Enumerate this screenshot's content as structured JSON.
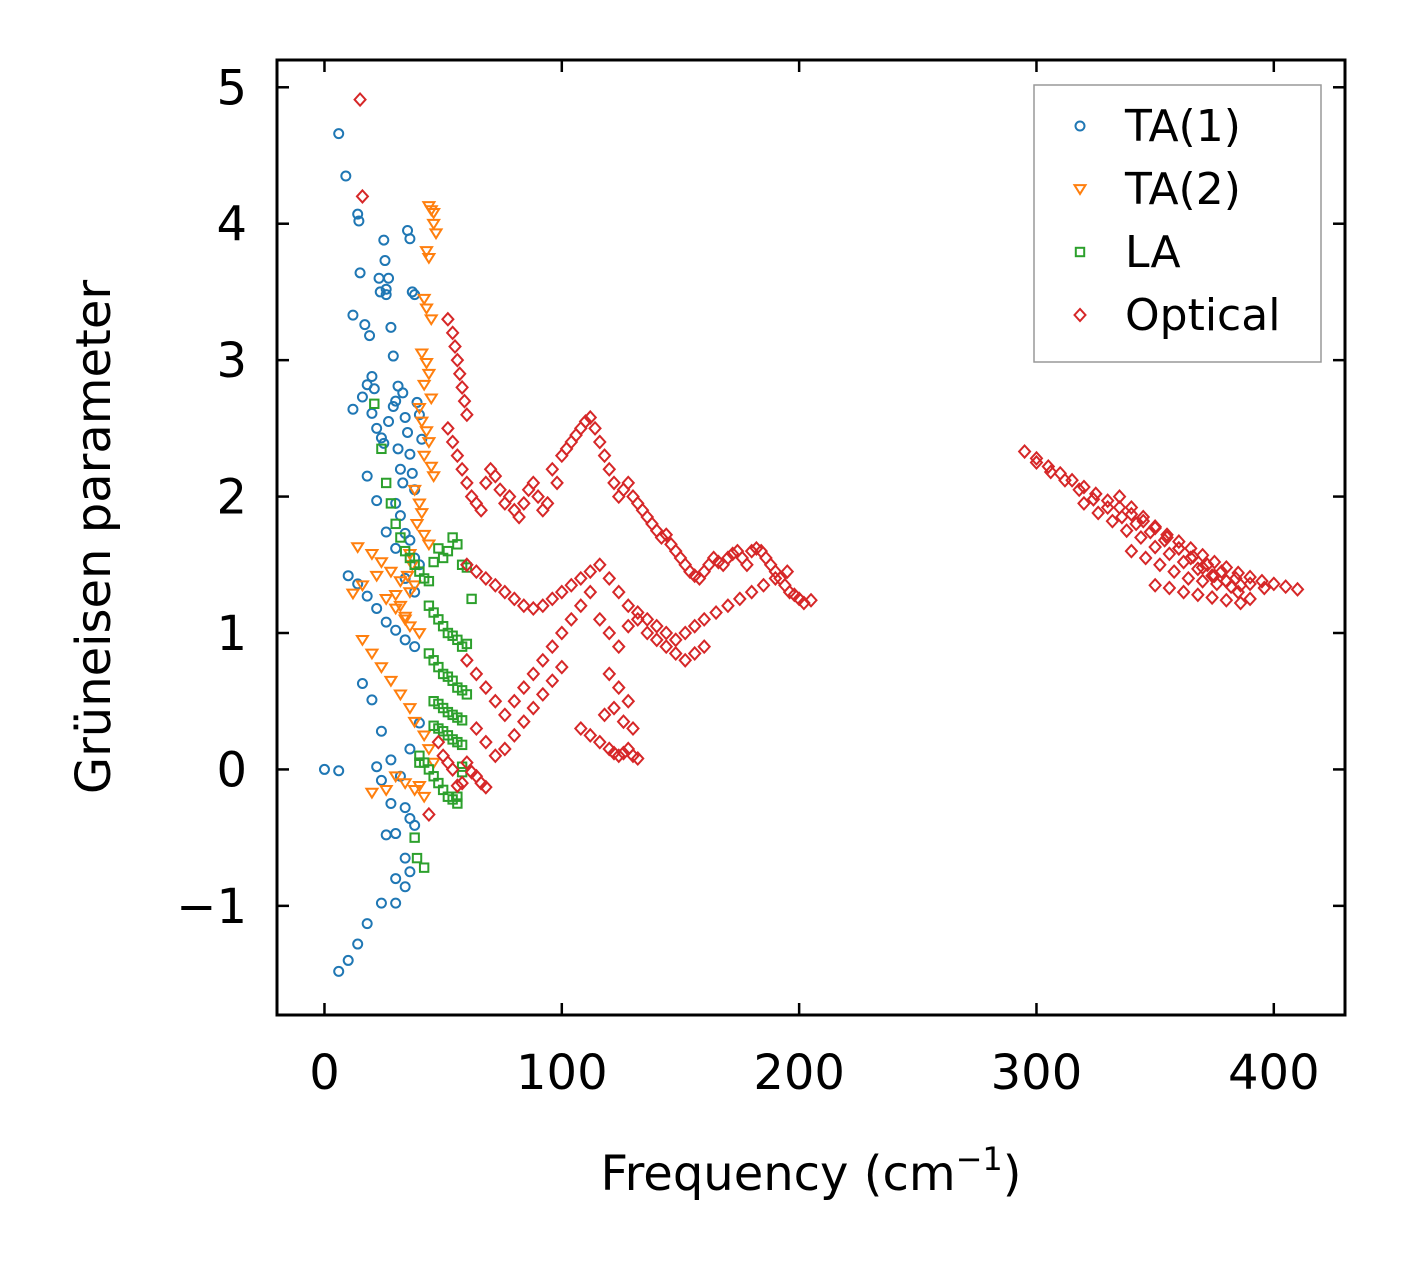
{
  "chart_data": {
    "type": "scatter",
    "xlabel": "Frequency (cm",
    "xlabel_sup": "−1",
    "xlabel_close": ")",
    "ylabel": "Grüneisen parameter",
    "xlim": [
      -20,
      430
    ],
    "ylim": [
      -1.8,
      5.2
    ],
    "xticks": [
      0,
      100,
      200,
      300,
      400
    ],
    "yticks": [
      -1,
      0,
      1,
      2,
      3,
      4,
      5
    ],
    "xtick_labels": [
      "0",
      "100",
      "200",
      "300",
      "400"
    ],
    "ytick_labels": [
      "−1",
      "0",
      "1",
      "2",
      "3",
      "4",
      "5"
    ],
    "legend_position": "top-right",
    "series": [
      {
        "name": "TA(1)",
        "marker": "circle",
        "color": "#1f77b4",
        "x": [
          6,
          9,
          12,
          14,
          14.5,
          17,
          19,
          20,
          21,
          23,
          23.5,
          25,
          25.5,
          26,
          26,
          27,
          28,
          29,
          31,
          33,
          35,
          36,
          37,
          38,
          12,
          16,
          18,
          20,
          22,
          24,
          25,
          27,
          29,
          30,
          31,
          32,
          33,
          34,
          35,
          36,
          37,
          38,
          39,
          40,
          41,
          30,
          32,
          34,
          36,
          38,
          40,
          10,
          14,
          18,
          22,
          26,
          30,
          34,
          38,
          16,
          20,
          24,
          28,
          32,
          36,
          40,
          15,
          18,
          22,
          26,
          30,
          34,
          38,
          0,
          6,
          22,
          24,
          28,
          30,
          34,
          36,
          38,
          26,
          30,
          34,
          36,
          6,
          10,
          14,
          18,
          24,
          30,
          34
        ],
        "y": [
          4.66,
          4.35,
          3.33,
          4.07,
          4.02,
          3.26,
          3.18,
          2.88,
          2.79,
          3.6,
          3.5,
          3.88,
          3.73,
          3.52,
          3.48,
          3.6,
          3.24,
          3.03,
          2.81,
          2.76,
          3.95,
          3.89,
          3.5,
          3.48,
          2.64,
          2.73,
          2.82,
          2.61,
          2.5,
          2.43,
          2.39,
          2.55,
          2.66,
          2.7,
          2.35,
          2.2,
          2.1,
          2.58,
          2.47,
          2.31,
          2.17,
          2.05,
          2.69,
          2.6,
          2.42,
          1.95,
          1.86,
          1.73,
          1.68,
          1.55,
          1.5,
          1.42,
          1.36,
          1.27,
          1.18,
          1.08,
          1.02,
          0.95,
          0.9,
          0.63,
          0.51,
          0.28,
          0.07,
          -0.05,
          0.15,
          0.34,
          3.64,
          2.15,
          1.97,
          1.74,
          1.62,
          1.4,
          1.3,
          0.0,
          -0.01,
          0.02,
          -0.08,
          -0.25,
          -0.47,
          -0.28,
          -0.36,
          -0.41,
          -0.48,
          -0.98,
          -0.86,
          -0.75,
          -1.48,
          -1.4,
          -1.28,
          -1.13,
          -0.98,
          -0.8,
          -0.65
        ]
      },
      {
        "name": "TA(2)",
        "marker": "triangle-down",
        "color": "#ff7f0e",
        "x": [
          44,
          45,
          46,
          46,
          47,
          43,
          44,
          42,
          43,
          45,
          41,
          43,
          44,
          42,
          45,
          40,
          41,
          43,
          44,
          42,
          45,
          46,
          38,
          40,
          41,
          39,
          42,
          44,
          36,
          37,
          35,
          38,
          30,
          32,
          34,
          36,
          14,
          20,
          24,
          28,
          32,
          36,
          12,
          16,
          22,
          26,
          30,
          34,
          40,
          16,
          20,
          24,
          28,
          32,
          36,
          38,
          42,
          44,
          46,
          30,
          34,
          38,
          42,
          20,
          26,
          40
        ],
        "y": [
          4.13,
          4.1,
          4.08,
          4.0,
          3.93,
          3.8,
          3.75,
          3.45,
          3.38,
          3.3,
          3.05,
          2.98,
          2.9,
          2.82,
          2.72,
          2.65,
          2.55,
          2.48,
          2.4,
          2.3,
          2.22,
          2.15,
          2.05,
          1.95,
          1.88,
          1.8,
          1.72,
          1.65,
          1.58,
          1.5,
          1.42,
          1.35,
          1.28,
          1.2,
          1.12,
          1.05,
          1.63,
          1.58,
          1.52,
          1.45,
          1.38,
          1.3,
          1.29,
          1.35,
          1.42,
          1.25,
          1.18,
          1.1,
          1.0,
          0.95,
          0.85,
          0.75,
          0.65,
          0.55,
          0.45,
          0.35,
          0.25,
          0.15,
          0.05,
          -0.05,
          -0.1,
          -0.15,
          -0.2,
          -0.17,
          -0.15,
          -0.12
        ]
      },
      {
        "name": "LA",
        "marker": "square",
        "color": "#2ca02c",
        "x": [
          21,
          24,
          26,
          28,
          30,
          32,
          34,
          36,
          38,
          40,
          42,
          44,
          46,
          48,
          50,
          52,
          54,
          56,
          58,
          60,
          62,
          44,
          46,
          48,
          50,
          52,
          54,
          56,
          58,
          60,
          44,
          46,
          48,
          50,
          52,
          54,
          56,
          58,
          60,
          46,
          48,
          50,
          52,
          54,
          56,
          58,
          46,
          48,
          50,
          52,
          54,
          56,
          58,
          40,
          42,
          44,
          46,
          48,
          50,
          52,
          54,
          56,
          58,
          40,
          38,
          39,
          42,
          56,
          58
        ],
        "y": [
          2.68,
          2.35,
          2.1,
          1.95,
          1.8,
          1.7,
          1.6,
          1.55,
          1.5,
          1.45,
          1.4,
          1.38,
          1.52,
          1.62,
          1.55,
          1.6,
          1.7,
          1.65,
          1.5,
          1.48,
          1.25,
          1.2,
          1.15,
          1.1,
          1.05,
          1.0,
          0.98,
          0.95,
          0.9,
          0.92,
          0.85,
          0.8,
          0.75,
          0.7,
          0.68,
          0.65,
          0.6,
          0.58,
          0.55,
          0.5,
          0.48,
          0.45,
          0.42,
          0.4,
          0.38,
          0.36,
          0.32,
          0.3,
          0.28,
          0.25,
          0.22,
          0.2,
          0.18,
          0.1,
          0.05,
          0.0,
          -0.05,
          -0.1,
          -0.15,
          -0.2,
          -0.22,
          -0.25,
          -0.02,
          0.05,
          -0.5,
          -0.65,
          -0.72,
          -0.2,
          0.02
        ]
      },
      {
        "name": "Optical",
        "marker": "diamond",
        "color": "#d62728",
        "x": [
          15,
          16,
          44,
          52,
          54,
          55,
          56,
          57,
          58,
          59,
          60,
          52,
          54,
          56,
          58,
          60,
          62,
          64,
          66,
          68,
          70,
          72,
          74,
          76,
          78,
          80,
          82,
          84,
          86,
          88,
          90,
          92,
          94,
          96,
          98,
          100,
          102,
          104,
          106,
          108,
          110,
          112,
          114,
          116,
          118,
          120,
          122,
          124,
          126,
          128,
          130,
          132,
          134,
          136,
          138,
          140,
          142,
          144,
          146,
          148,
          150,
          152,
          154,
          156,
          158,
          160,
          162,
          164,
          166,
          168,
          170,
          172,
          174,
          176,
          178,
          180,
          182,
          184,
          186,
          188,
          190,
          192,
          194,
          196,
          198,
          200,
          202,
          205,
          60,
          64,
          68,
          72,
          76,
          80,
          84,
          88,
          92,
          96,
          100,
          104,
          108,
          112,
          116,
          120,
          124,
          128,
          132,
          136,
          140,
          144,
          148,
          152,
          156,
          160,
          165,
          170,
          175,
          180,
          185,
          190,
          195,
          60,
          64,
          68,
          72,
          76,
          80,
          84,
          88,
          92,
          96,
          100,
          104,
          108,
          112,
          116,
          120,
          124,
          128,
          132,
          136,
          140,
          144,
          148,
          152,
          156,
          160,
          64,
          68,
          72,
          76,
          80,
          84,
          88,
          92,
          96,
          100,
          108,
          112,
          116,
          120,
          122,
          124,
          126,
          128,
          130,
          132,
          120,
          124,
          128,
          118,
          122,
          126,
          130,
          60,
          62,
          64,
          66,
          68,
          58,
          56,
          54,
          52,
          50,
          48,
          295,
          300,
          305,
          310,
          315,
          320,
          325,
          330,
          335,
          340,
          345,
          350,
          355,
          360,
          365,
          370,
          375,
          380,
          385,
          390,
          395,
          400,
          405,
          410,
          300,
          306,
          312,
          318,
          324,
          330,
          336,
          342,
          348,
          354,
          360,
          366,
          372,
          378,
          384,
          390,
          396,
          320,
          326,
          332,
          338,
          344,
          350,
          356,
          362,
          368,
          374,
          380,
          386,
          335,
          340,
          345,
          350,
          355,
          360,
          365,
          370,
          375,
          380,
          385,
          390,
          340,
          346,
          352,
          358,
          364,
          370,
          376,
          382,
          350,
          356,
          362,
          368,
          374,
          380,
          386
        ],
        "y": [
          4.91,
          4.2,
          -0.33,
          3.3,
          3.2,
          3.1,
          3.0,
          2.9,
          2.8,
          2.7,
          2.6,
          2.5,
          2.4,
          2.3,
          2.2,
          2.1,
          2.0,
          1.95,
          1.9,
          2.1,
          2.2,
          2.15,
          2.05,
          1.95,
          2.0,
          1.9,
          1.85,
          1.95,
          2.05,
          2.1,
          2.0,
          1.9,
          1.95,
          2.2,
          2.1,
          2.3,
          2.35,
          2.4,
          2.45,
          2.5,
          2.55,
          2.58,
          2.5,
          2.4,
          2.3,
          2.2,
          2.1,
          2.0,
          2.05,
          2.1,
          2.0,
          1.95,
          1.9,
          1.85,
          1.8,
          1.75,
          1.7,
          1.72,
          1.65,
          1.6,
          1.55,
          1.5,
          1.45,
          1.42,
          1.4,
          1.45,
          1.5,
          1.55,
          1.52,
          1.5,
          1.55,
          1.58,
          1.6,
          1.55,
          1.5,
          1.6,
          1.62,
          1.6,
          1.55,
          1.5,
          1.45,
          1.4,
          1.35,
          1.3,
          1.28,
          1.25,
          1.22,
          1.24,
          1.5,
          1.45,
          1.4,
          1.35,
          1.3,
          1.25,
          1.2,
          1.18,
          1.2,
          1.25,
          1.3,
          1.35,
          1.4,
          1.45,
          1.5,
          1.4,
          1.3,
          1.2,
          1.15,
          1.1,
          1.05,
          1.0,
          0.95,
          1.0,
          1.05,
          1.1,
          1.15,
          1.2,
          1.25,
          1.3,
          1.35,
          1.4,
          1.45,
          0.8,
          0.7,
          0.6,
          0.5,
          0.4,
          0.5,
          0.6,
          0.7,
          0.8,
          0.9,
          1.0,
          1.1,
          1.2,
          1.3,
          1.1,
          1.0,
          0.9,
          1.05,
          1.1,
          1.0,
          0.95,
          0.9,
          0.85,
          0.8,
          0.85,
          0.9,
          0.3,
          0.2,
          0.1,
          0.15,
          0.25,
          0.35,
          0.45,
          0.55,
          0.65,
          0.75,
          0.3,
          0.25,
          0.2,
          0.15,
          0.12,
          0.1,
          0.12,
          0.15,
          0.1,
          0.08,
          0.7,
          0.6,
          0.5,
          0.4,
          0.45,
          0.35,
          0.3,
          0.05,
          -0.02,
          -0.05,
          -0.1,
          -0.13,
          -0.1,
          -0.12,
          0.0,
          0.05,
          0.1,
          0.2,
          2.33,
          2.28,
          2.22,
          2.17,
          2.12,
          2.07,
          2.02,
          1.97,
          1.92,
          1.87,
          1.82,
          1.77,
          1.72,
          1.67,
          1.62,
          1.57,
          1.52,
          1.48,
          1.44,
          1.41,
          1.38,
          1.36,
          1.34,
          1.32,
          2.25,
          2.18,
          2.12,
          2.05,
          1.98,
          1.92,
          1.85,
          1.8,
          1.74,
          1.68,
          1.62,
          1.56,
          1.5,
          1.45,
          1.4,
          1.36,
          1.33,
          1.95,
          1.88,
          1.82,
          1.75,
          1.7,
          1.63,
          1.58,
          1.52,
          1.47,
          1.42,
          1.38,
          1.35,
          2.0,
          1.92,
          1.85,
          1.78,
          1.7,
          1.62,
          1.55,
          1.48,
          1.42,
          1.38,
          1.3,
          1.25,
          1.6,
          1.55,
          1.5,
          1.45,
          1.4,
          1.38,
          1.36,
          1.34,
          1.35,
          1.33,
          1.3,
          1.28,
          1.26,
          1.24,
          1.22
        ]
      }
    ]
  }
}
